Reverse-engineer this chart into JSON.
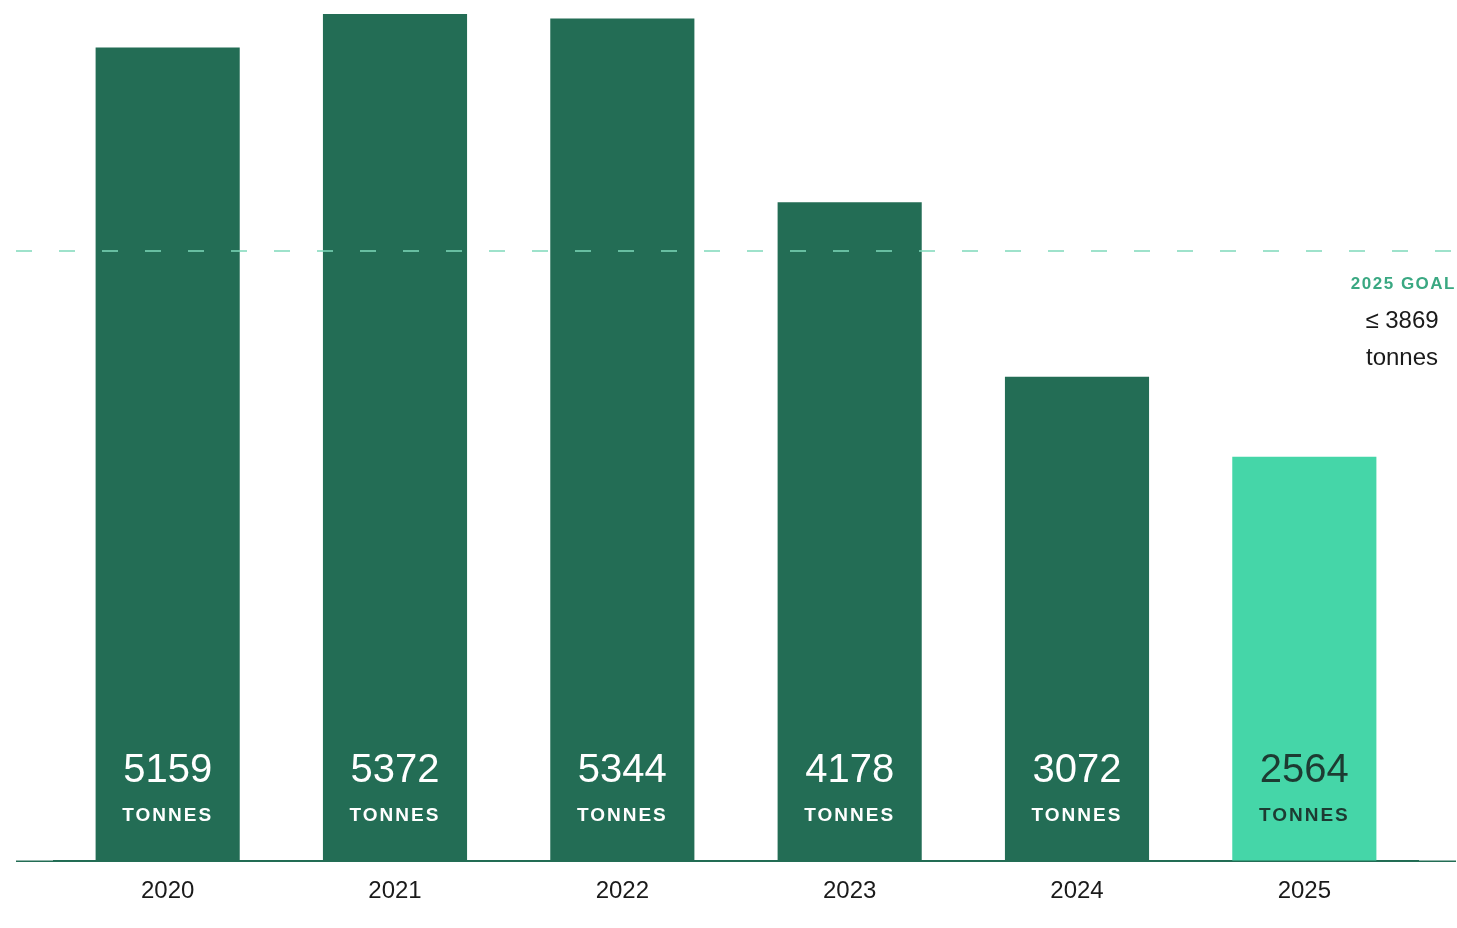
{
  "chart_data": {
    "type": "bar",
    "categories": [
      "2020",
      "2021",
      "2022",
      "2023",
      "2024",
      "2025"
    ],
    "values": [
      5159,
      5372,
      5344,
      4178,
      3072,
      2564
    ],
    "colors": [
      "#236d55",
      "#236d55",
      "#236d55",
      "#236d55",
      "#236d55",
      "#45d6a8"
    ],
    "value_labels": [
      "5159 TONNES",
      "5372 TONNES",
      "5344 TONNES",
      "4178 TONNES",
      "3072 TONNES",
      "2564 TONNES"
    ],
    "grid": false,
    "legend": false,
    "ref_lines": [
      {
        "axis": "y",
        "value": 3869,
        "label": "2025 GOAL",
        "color": "#7fd9bb",
        "line_style": "dashed"
      }
    ],
    "annotations": [
      "≤ 3869 tonnes"
    ]
  }
}
